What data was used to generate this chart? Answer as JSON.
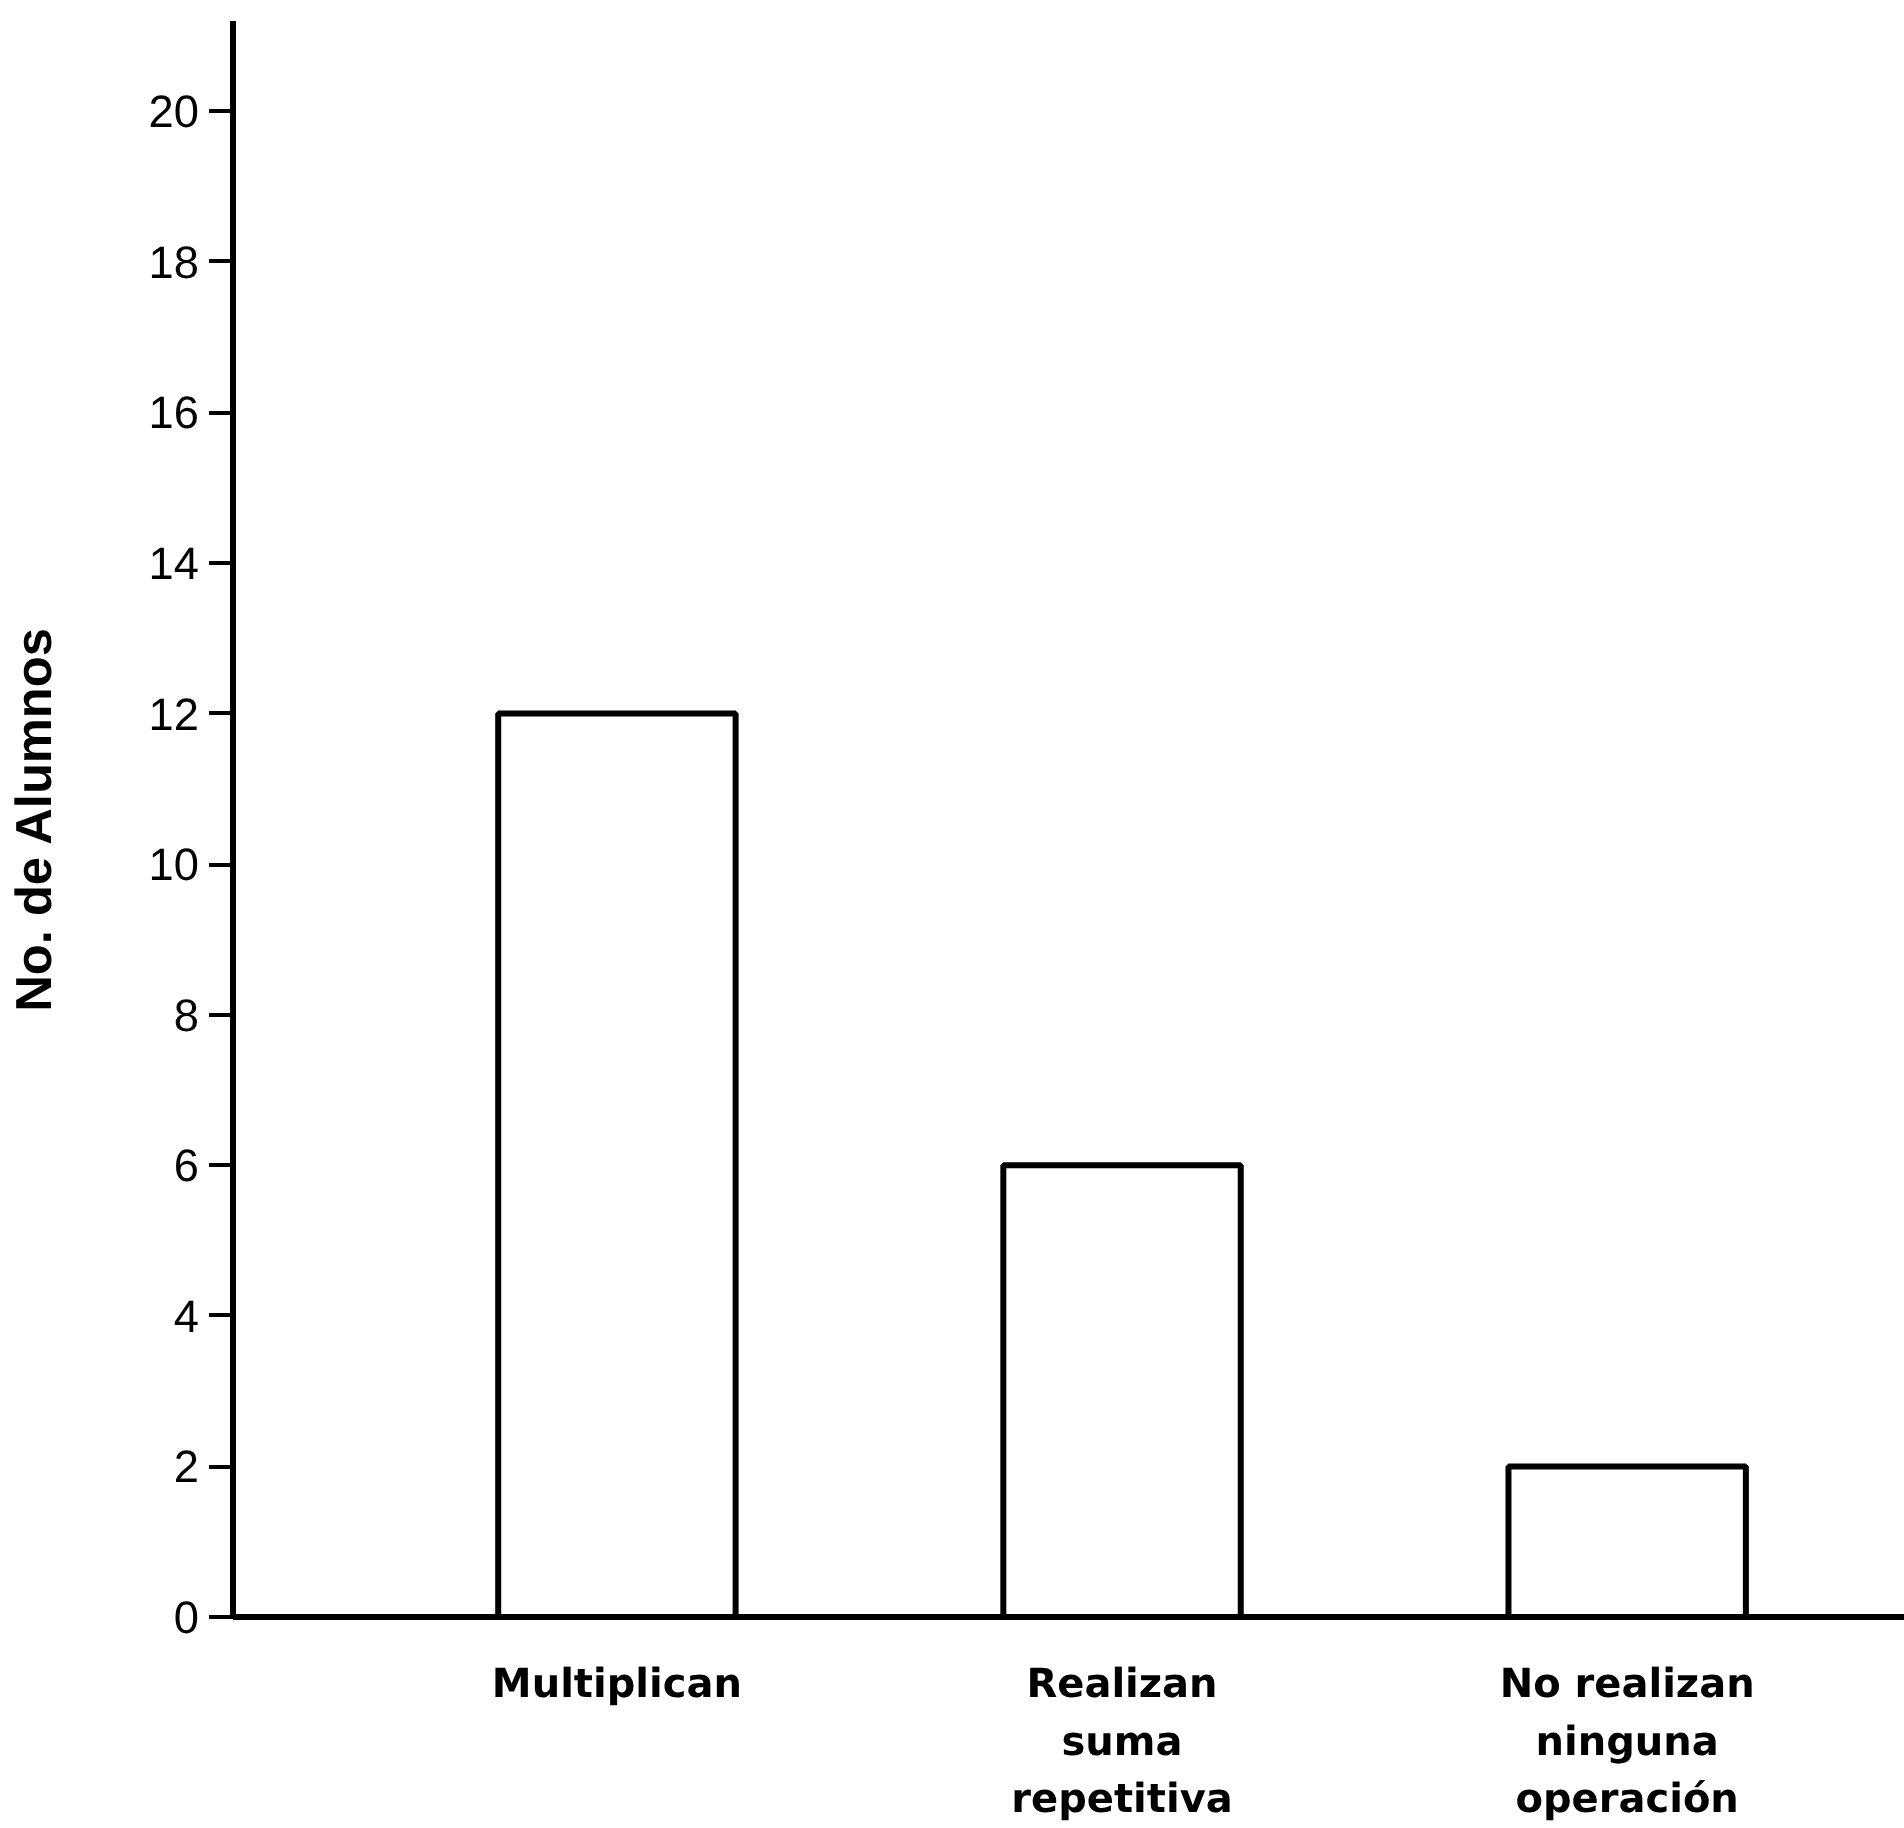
{
  "chart_data": {
    "type": "bar",
    "ylabel": "No. de Alumnos",
    "categories": [
      "Multiplican",
      "Realizan\nsuma\nrepetitiva",
      "No realizan\nninguna\noperación"
    ],
    "values": [
      12,
      6,
      2
    ],
    "color": "#ffffff",
    "ylim": [
      0,
      21.2
    ],
    "yticks": [
      0,
      2,
      4,
      6,
      8,
      10,
      12,
      14,
      16,
      18,
      20
    ],
    "grid": false
  }
}
